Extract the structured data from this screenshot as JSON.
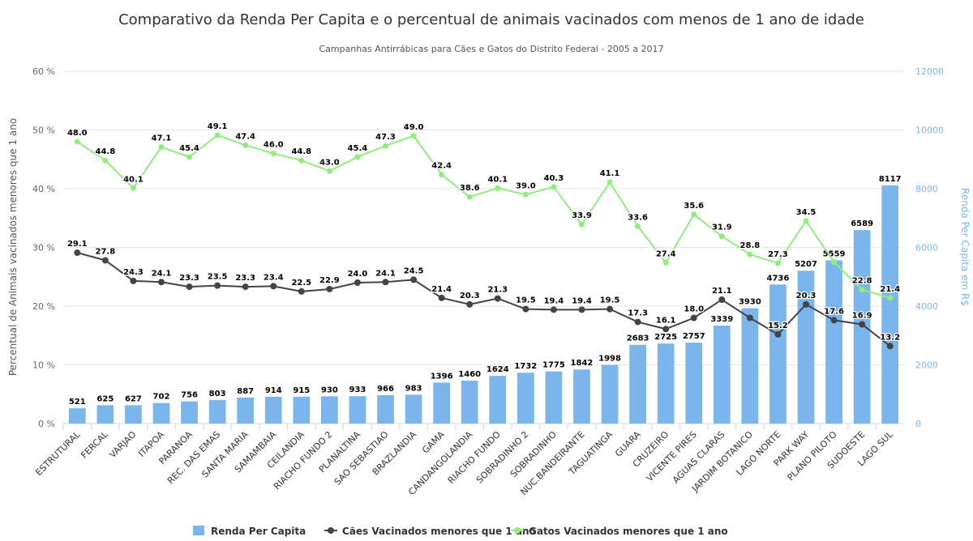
{
  "chart_data": {
    "type": "combo",
    "title": "Comparativo da Renda Per Capita e o percentual de animais vacinados com menos de 1 ano de idade",
    "subtitle": "Campanhas Antirrábicas para Cães e Gatos do Distrito Federal - 2005 a 2017",
    "y_label": "Percentual de Animais vacinados menores que 1 ano",
    "y2_label": "Renda Per Capita em R$",
    "categories": [
      "ESTRUTURAL",
      "FERCAL",
      "VARJAO",
      "ITAPOA",
      "PARANOA",
      "REC. DAS EMAS",
      "SANTA MARIA",
      "SAMAMBAIA",
      "CEILANDIA",
      "RIACHO FUNDO 2",
      "PLANALTINA",
      "SAO SEBASTIAO",
      "BRAZLANDIA",
      "GAMA",
      "CANDANGOLANDIA",
      "RIACHO FUNDO",
      "SOBRADINHO 2",
      "SOBRADINHO",
      "NUC.BANDEIRANTE",
      "TAGUATINGA",
      "GUARA",
      "CRUZEIRO",
      "VICENTE PIRES",
      "AGUAS CLARAS",
      "JARDIM BOTANICO",
      "LAGO NORTE",
      "PARK WAY",
      "PLANO PILOTO",
      "SUDOESTE",
      "LAGO SUL"
    ],
    "series": [
      {
        "name": "Renda Per Capita",
        "color": "#7cb5ec",
        "type": "bar",
        "axis": "y2",
        "values": [
          521,
          625,
          627,
          702,
          756,
          803,
          887,
          914,
          915,
          930,
          933,
          966,
          983,
          1396,
          1460,
          1624,
          1732,
          1775,
          1842,
          1998,
          2683,
          2725,
          2757,
          3339,
          3930,
          4736,
          5207,
          5559,
          6589,
          8117
        ]
      },
      {
        "name": "Cães Vacinados menores que 1 ano",
        "color": "#434348",
        "type": "line",
        "values": [
          29.1,
          27.8,
          24.3,
          24.1,
          23.3,
          23.5,
          23.3,
          23.4,
          22.5,
          22.9,
          24.0,
          24.1,
          24.5,
          21.4,
          20.3,
          21.3,
          19.5,
          19.4,
          19.4,
          19.5,
          17.3,
          16.1,
          18.0,
          21.1,
          18.0,
          15.2,
          20.3,
          17.6,
          16.9,
          13.2
        ],
        "value_labels": [
          "29.1",
          "27.8",
          "24.3",
          "24.1",
          "23.3",
          "23.5",
          "23.3",
          "23.4",
          "22.5",
          "22.9",
          "24.0",
          "24.1",
          "24.5",
          "21.4",
          "20.3",
          "21.3",
          "19.5",
          "19.4",
          "19.4",
          "19.5",
          "17.3",
          "16.1",
          "18.0",
          "21.1",
          null,
          "15.2",
          "20.3",
          "17.6",
          "16.9",
          "13.2"
        ]
      },
      {
        "name": "Gatos Vacinados menores que 1 ano",
        "color": "#90ed7d",
        "type": "line",
        "values": [
          48.0,
          44.8,
          40.1,
          47.1,
          45.4,
          49.1,
          47.4,
          46.0,
          44.8,
          43.0,
          45.4,
          47.3,
          49.0,
          42.4,
          38.6,
          40.1,
          39.0,
          40.3,
          33.9,
          41.1,
          33.6,
          27.4,
          35.6,
          31.9,
          28.8,
          27.3,
          34.5,
          27.5,
          22.8,
          21.4
        ],
        "value_labels": [
          "48.0",
          "44.8",
          "40.1",
          "47.1",
          "45.4",
          "49.1",
          "47.4",
          "46.0",
          "44.8",
          "43.0",
          "45.4",
          "47.3",
          "49.0",
          "42.4",
          "38.6",
          "40.1",
          "39.0",
          "40.3",
          "33.9",
          "41.1",
          "33.6",
          "27.4",
          "35.6",
          "31.9",
          "28.8",
          "27.3",
          "34.5",
          null,
          "22.8",
          "21.4"
        ]
      }
    ],
    "ylim": [
      0,
      60
    ],
    "yticks": [
      {
        "value": 0,
        "label": "0 %"
      },
      {
        "value": 10,
        "label": "10 %"
      },
      {
        "value": 20,
        "label": "20 %"
      },
      {
        "value": 30,
        "label": "30 %"
      },
      {
        "value": 40,
        "label": "40 %"
      },
      {
        "value": 50,
        "label": "50 %"
      },
      {
        "value": 60,
        "label": "60 %"
      }
    ],
    "y2lim": [
      0,
      12000
    ],
    "y2ticks": [
      0,
      2000,
      4000,
      6000,
      8000,
      10000,
      12000
    ],
    "grid": true
  }
}
